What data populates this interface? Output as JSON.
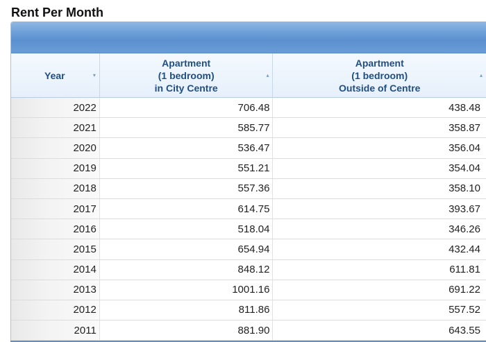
{
  "page": {
    "title": "Rent Per Month"
  },
  "table": {
    "columns": [
      {
        "key": "year",
        "lines": [
          "Year"
        ],
        "sortable": true
      },
      {
        "key": "city",
        "lines": [
          "Apartment",
          "(1 bedroom)",
          "in City Centre"
        ],
        "sortable": true
      },
      {
        "key": "outside",
        "lines": [
          "Apartment",
          "(1 bedroom)",
          "Outside of Centre"
        ],
        "sortable": true
      }
    ],
    "sort_down_glyph": "▾",
    "sort_up_glyph": "▴",
    "rows": [
      {
        "year": "2022",
        "city": "706.48",
        "outside": "438.48"
      },
      {
        "year": "2021",
        "city": "585.77",
        "outside": "358.87"
      },
      {
        "year": "2020",
        "city": "536.47",
        "outside": "356.04"
      },
      {
        "year": "2019",
        "city": "551.21",
        "outside": "354.04"
      },
      {
        "year": "2018",
        "city": "557.36",
        "outside": "358.10"
      },
      {
        "year": "2017",
        "city": "614.75",
        "outside": "393.67"
      },
      {
        "year": "2016",
        "city": "518.04",
        "outside": "346.26"
      },
      {
        "year": "2015",
        "city": "654.94",
        "outside": "432.44"
      },
      {
        "year": "2014",
        "city": "848.12",
        "outside": "611.81"
      },
      {
        "year": "2013",
        "city": "1001.16",
        "outside": "691.22"
      },
      {
        "year": "2012",
        "city": "811.86",
        "outside": "557.52"
      },
      {
        "year": "2011",
        "city": "881.90",
        "outside": "643.55"
      }
    ]
  },
  "colors": {
    "header_text": "#1f4e83",
    "band": "#6c9fd8"
  }
}
